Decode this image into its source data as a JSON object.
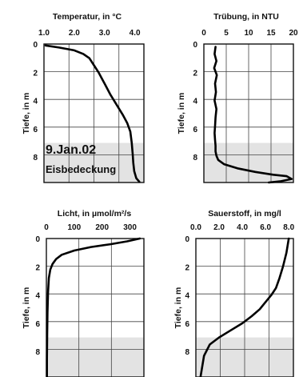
{
  "annotation": {
    "date": "9.Jan.02",
    "note": "Eisbedeckung"
  },
  "colors": {
    "curve": "#000000",
    "ice_band": "#e3e3e3",
    "grid": "#444444"
  },
  "chart_data": [
    {
      "id": "temp",
      "type": "line",
      "title": "Temperatur, in °C",
      "xlabel": "Temperatur, in °C",
      "ylabel": "Tiefe, in m",
      "xlim": [
        1.0,
        4.3
      ],
      "ylim": [
        0,
        9.8
      ],
      "xticks": [
        1.0,
        2.0,
        3.0,
        4.0
      ],
      "xtick_labels": [
        "1.0",
        "2.0",
        "3.0",
        "4.0"
      ],
      "yticks": [
        0,
        2,
        4,
        6,
        8
      ],
      "grid": true,
      "shaded_depth": [
        7.0,
        9.8
      ],
      "series": [
        {
          "x": [
            1.05,
            1.5,
            2.0,
            2.3,
            2.5,
            2.65,
            2.8,
            3.0,
            3.2,
            3.4,
            3.6,
            3.75,
            3.85,
            3.9,
            3.93,
            3.95,
            3.98,
            4.05,
            4.15
          ],
          "y": [
            0.1,
            0.25,
            0.45,
            0.7,
            1.0,
            1.5,
            2.0,
            2.8,
            3.6,
            4.3,
            5.0,
            5.6,
            6.2,
            7.0,
            7.8,
            8.4,
            9.0,
            9.5,
            9.75
          ]
        }
      ]
    },
    {
      "id": "turb",
      "type": "line",
      "title": "Trübung, in NTU",
      "xlabel": "Trübung, in NTU",
      "ylabel": "Tiefe, in m",
      "xlim": [
        0,
        20
      ],
      "ylim": [
        0,
        9.8
      ],
      "xticks": [
        0,
        5,
        10,
        15,
        20
      ],
      "xtick_labels": [
        "0",
        "5",
        "10",
        "15",
        "20"
      ],
      "yticks": [
        0,
        2,
        4,
        6,
        8
      ],
      "grid": true,
      "shaded_depth": [
        7.0,
        9.8
      ],
      "series": [
        {
          "x": [
            2.6,
            2.4,
            2.8,
            2.3,
            2.9,
            2.5,
            2.7,
            2.4,
            2.8,
            2.6,
            2.5,
            2.4,
            2.5,
            2.6,
            2.6,
            2.8,
            3.2,
            4.5,
            7.5,
            11.5,
            15.5,
            18.5,
            19.6,
            17.0,
            14.5
          ],
          "y": [
            0.2,
            0.7,
            1.2,
            1.7,
            2.2,
            2.8,
            3.4,
            4.0,
            4.6,
            5.2,
            5.8,
            6.3,
            6.8,
            7.2,
            7.6,
            7.9,
            8.2,
            8.5,
            8.8,
            9.05,
            9.25,
            9.35,
            9.55,
            9.72,
            9.8
          ]
        }
      ]
    },
    {
      "id": "licht",
      "type": "line",
      "title": "Licht, in µmol/m²/s",
      "xlabel": "Licht, in µmol/m²/s",
      "ylabel": "Tiefe, in m",
      "xlim": [
        0,
        350
      ],
      "ylim": [
        0,
        9.8
      ],
      "xticks": [
        0,
        100,
        200,
        300
      ],
      "xtick_labels": [
        "0",
        "100",
        "200",
        "300"
      ],
      "yticks": [
        0,
        2,
        4,
        6,
        8
      ],
      "grid": true,
      "shaded_depth": [
        7.0,
        9.8
      ],
      "series": [
        {
          "x": [
            335,
            290,
            230,
            160,
            100,
            55,
            35,
            22,
            14,
            9,
            6,
            4,
            3,
            2,
            2
          ],
          "y": [
            0.0,
            0.2,
            0.4,
            0.6,
            0.85,
            1.15,
            1.45,
            1.8,
            2.2,
            2.8,
            3.8,
            5.2,
            6.8,
            8.5,
            9.8
          ]
        }
      ]
    },
    {
      "id": "o2",
      "type": "line",
      "title": "Sauerstoff, in mg/l",
      "xlabel": "Sauerstoff, in mg/l",
      "ylabel": "Tiefe, in m",
      "xlim": [
        0.0,
        8.4
      ],
      "ylim": [
        0,
        9.8
      ],
      "xticks": [
        0.0,
        2.0,
        4.0,
        6.0,
        8.0
      ],
      "xtick_labels": [
        "0.0",
        "2.0",
        "4.0",
        "6.0",
        "8.0"
      ],
      "yticks": [
        0,
        2,
        4,
        6,
        8
      ],
      "grid": true,
      "shaded_depth": [
        7.0,
        9.8
      ],
      "series": [
        {
          "x": [
            8.0,
            7.8,
            7.5,
            7.2,
            6.9,
            6.5,
            6.0,
            5.5,
            4.8,
            4.0,
            3.0,
            2.0,
            1.2,
            0.7,
            0.4
          ],
          "y": [
            0.0,
            1.0,
            2.0,
            2.8,
            3.5,
            4.0,
            4.5,
            5.0,
            5.5,
            6.0,
            6.5,
            7.0,
            7.5,
            8.3,
            9.8
          ]
        }
      ]
    }
  ]
}
